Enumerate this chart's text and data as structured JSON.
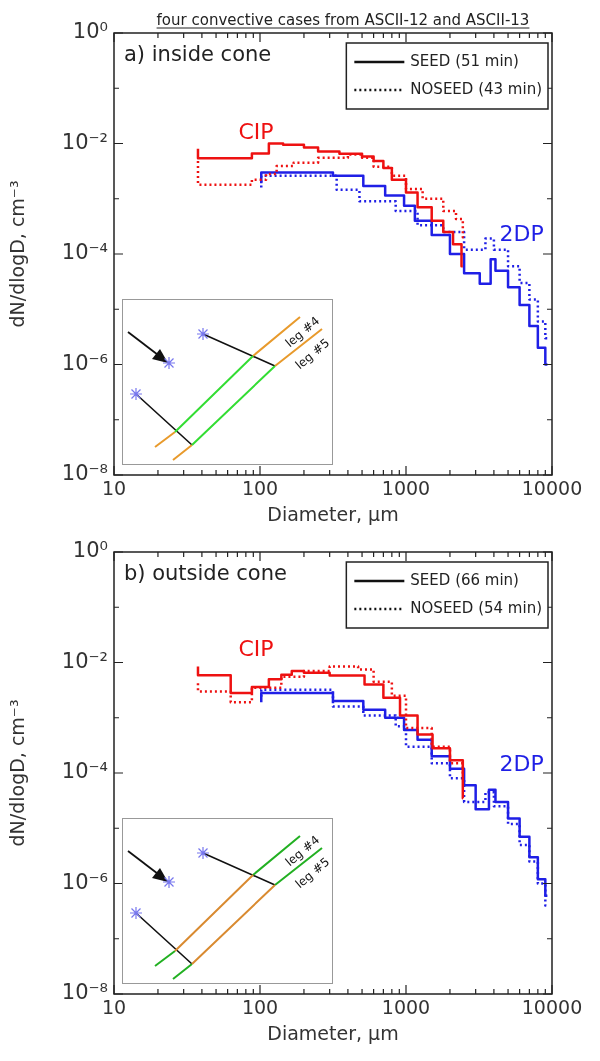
{
  "chart_data": [
    {
      "type": "step",
      "title": "four convective cases from ASCII-12 and ASCII-13",
      "xlabel": "Diameter, μm",
      "ylabel": "dN/dlogD, cm⁻³",
      "log": "xy",
      "grid": false,
      "legend": "top right",
      "xlim": [
        10,
        10000
      ],
      "ylim": [
        1e-08,
        1
      ],
      "xticks": [
        10,
        {
          "value": 20,
          "label": null
        },
        {
          "value": 30,
          "label": null
        },
        {
          "value": 40,
          "label": null
        },
        {
          "value": 50,
          "label": null
        },
        {
          "value": 60,
          "label": null
        },
        {
          "value": 70,
          "label": null
        },
        {
          "value": 80,
          "label": null
        },
        {
          "value": 90,
          "label": null
        },
        100,
        {
          "value": 200,
          "label": null
        },
        {
          "value": 300,
          "label": null
        },
        {
          "value": 400,
          "label": null
        },
        {
          "value": 500,
          "label": null
        },
        {
          "value": 600,
          "label": null
        },
        {
          "value": 700,
          "label": null
        },
        {
          "value": 800,
          "label": null
        },
        {
          "value": 900,
          "label": null
        },
        1000,
        {
          "value": 2000,
          "label": null
        },
        {
          "value": 3000,
          "label": null
        },
        {
          "value": 4000,
          "label": null
        },
        {
          "value": 5000,
          "label": null
        },
        {
          "value": 6000,
          "label": null
        },
        {
          "value": 7000,
          "label": null
        },
        {
          "value": 8000,
          "label": null
        },
        {
          "value": 9000,
          "label": null
        },
        10000
      ],
      "yticks": [
        {
          "value": 1e-08,
          "label": "10⁻⁸"
        },
        {
          "value": 1e-07,
          "label": null
        },
        {
          "value": 1e-06,
          "label": "10⁻⁶"
        },
        {
          "value": 1e-05,
          "label": null
        },
        {
          "value": 0.0001,
          "label": "10⁻⁴"
        },
        {
          "value": 0.001,
          "label": null
        },
        {
          "value": 0.01,
          "label": "10⁻²"
        },
        {
          "value": 0.1,
          "label": null
        },
        {
          "value": 1,
          "label": "10⁰"
        }
      ],
      "annotations": [
        "a) inside cone",
        "SEED (51 min)",
        "NOSEED (43 min)",
        "leg #4",
        "leg #5"
      ],
      "series": [
        {
          "name": "CIP",
          "color": "#ee1111",
          "line_style": "solid",
          "x": [
            37.6,
            88,
            115,
            144,
            200,
            250,
            350,
            500,
            600,
            700,
            800,
            1000,
            1200,
            1500,
            1800,
            2100,
            2400,
            2450
          ],
          "values": [
            0.008,
            0.0054,
            0.0066,
            0.01,
            0.0095,
            0.0085,
            0.0072,
            0.0065,
            0.0058,
            0.0048,
            0.0036,
            0.0022,
            0.0013,
            0.0007,
            0.0004,
            0.00025,
            0.00015,
            6e-05
          ]
        },
        {
          "color": "#ee1111",
          "line_style": "dotted",
          "x": [
            37.6,
            88,
            110,
            130,
            170,
            250,
            400,
            500,
            600,
            800,
            1000,
            1300,
            1800,
            2200,
            2450,
            2500
          ],
          "values": [
            0.0048,
            0.0018,
            0.0022,
            0.0028,
            0.0039,
            0.0045,
            0.0055,
            0.0063,
            0.0055,
            0.0038,
            0.0026,
            0.0015,
            0.001,
            0.0006,
            0.00043,
            0.0002
          ]
        },
        {
          "name": "2DP",
          "color": "#1f1fe6",
          "line_style": "solid",
          "x": [
            102,
            316,
            510,
            720,
            970,
            1150,
            1500,
            2000,
            2500,
            3200,
            3800,
            4100,
            5000,
            6000,
            7000,
            8000,
            9000,
            9300
          ],
          "values": [
            0.0019,
            0.003,
            0.0026,
            0.0017,
            0.00115,
            0.00075,
            0.0004,
            0.00022,
            0.0001,
            4.5e-05,
            2.9e-05,
            8e-05,
            5e-05,
            2.5e-05,
            1.2e-05,
            5e-06,
            2e-06,
            1e-06
          ]
        },
        {
          "color": "#1f1fe6",
          "line_style": "dotted",
          "x": [
            102,
            335,
            480,
            850,
            1200,
            1800,
            2500,
            3500,
            4000,
            5000,
            6000,
            7000,
            8000,
            9000,
            9500
          ],
          "values": [
            0.0016,
            0.0026,
            0.00145,
            0.0009,
            0.0006,
            0.00033,
            0.00025,
            0.00012,
            0.00019,
            0.00012,
            6e-05,
            3e-05,
            1.5e-05,
            6e-06,
            3e-06
          ]
        }
      ]
    },
    {
      "type": "step",
      "xlabel": "Diameter, μm",
      "ylabel": "dN/dlogD, cm⁻³",
      "log": "xy",
      "grid": false,
      "legend": "top right",
      "xlim": [
        10,
        10000
      ],
      "ylim": [
        1e-08,
        1
      ],
      "xticks": [
        10,
        {
          "value": 20,
          "label": null
        },
        {
          "value": 30,
          "label": null
        },
        {
          "value": 40,
          "label": null
        },
        {
          "value": 50,
          "label": null
        },
        {
          "value": 60,
          "label": null
        },
        {
          "value": 70,
          "label": null
        },
        {
          "value": 80,
          "label": null
        },
        {
          "value": 90,
          "label": null
        },
        100,
        {
          "value": 200,
          "label": null
        },
        {
          "value": 300,
          "label": null
        },
        {
          "value": 400,
          "label": null
        },
        {
          "value": 500,
          "label": null
        },
        {
          "value": 600,
          "label": null
        },
        {
          "value": 700,
          "label": null
        },
        {
          "value": 800,
          "label": null
        },
        {
          "value": 900,
          "label": null
        },
        1000,
        {
          "value": 2000,
          "label": null
        },
        {
          "value": 3000,
          "label": null
        },
        {
          "value": 4000,
          "label": null
        },
        {
          "value": 5000,
          "label": null
        },
        {
          "value": 6000,
          "label": null
        },
        {
          "value": 7000,
          "label": null
        },
        {
          "value": 8000,
          "label": null
        },
        {
          "value": 9000,
          "label": null
        },
        10000
      ],
      "yticks": [
        {
          "value": 1e-08,
          "label": "10⁻⁸"
        },
        {
          "value": 1e-07,
          "label": null
        },
        {
          "value": 1e-06,
          "label": "10⁻⁶"
        },
        {
          "value": 1e-05,
          "label": null
        },
        {
          "value": 0.0001,
          "label": "10⁻⁴"
        },
        {
          "value": 0.001,
          "label": null
        },
        {
          "value": 0.01,
          "label": "10⁻²"
        },
        {
          "value": 0.1,
          "label": null
        },
        {
          "value": 1,
          "label": "10⁰"
        }
      ],
      "annotations": [
        "b) outside cone",
        "SEED (66 min)",
        "NOSEED (54 min)",
        "leg #4",
        "leg #5"
      ],
      "series": [
        {
          "name": "CIP",
          "color": "#ee1111",
          "line_style": "solid",
          "x": [
            37.6,
            63,
            88,
            115,
            140,
            165,
            200,
            300,
            520,
            700,
            910,
            1200,
            1520,
            2000,
            2450,
            2460
          ],
          "values": [
            0.0085,
            0.0059,
            0.0028,
            0.0036,
            0.005,
            0.006,
            0.007,
            0.0065,
            0.0058,
            0.004,
            0.0023,
            0.0011,
            0.0005,
            0.00028,
            0.00017,
            3.5e-05
          ]
        },
        {
          "color": "#ee1111",
          "line_style": "dotted",
          "x": [
            37.6,
            63,
            88,
            140,
            200,
            300,
            470,
            600,
            800,
            1000,
            1500,
            2000,
            2450,
            2500
          ],
          "values": [
            0.0042,
            0.003,
            0.0019,
            0.0035,
            0.0055,
            0.007,
            0.0085,
            0.0075,
            0.0045,
            0.0025,
            0.00065,
            0.0003,
            0.00015,
            0.0001
          ]
        },
        {
          "name": "2DP",
          "color": "#1f1fe6",
          "line_style": "solid",
          "x": [
            102,
            316,
            510,
            720,
            970,
            1200,
            1500,
            2000,
            2500,
            3000,
            3700,
            4100,
            5000,
            6000,
            7000,
            8000,
            9000,
            9300
          ],
          "values": [
            0.0019,
            0.0028,
            0.002,
            0.0014,
            0.001,
            0.0006,
            0.0004,
            0.0002,
            0.00012,
            6e-05,
            2.2e-05,
            5e-05,
            3e-05,
            1.5e-05,
            7e-06,
            3e-06,
            1.2e-06,
            6e-07
          ]
        },
        {
          "color": "#1f1fe6",
          "line_style": "dotted",
          "x": [
            102,
            316,
            510,
            850,
            1000,
            1500,
            2000,
            2500,
            3500,
            4000,
            5000,
            6000,
            7000,
            8000,
            9000,
            9400
          ],
          "values": [
            0.0024,
            0.0032,
            0.0016,
            0.0011,
            0.0007,
            0.0003,
            0.00015,
            8e-05,
            3e-05,
            4.5e-05,
            2.5e-05,
            1.2e-05,
            5e-06,
            2.5e-06,
            1e-06,
            4e-07
          ]
        }
      ]
    }
  ]
}
